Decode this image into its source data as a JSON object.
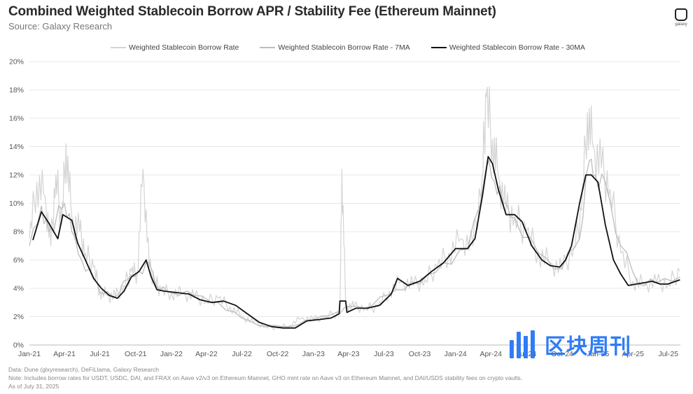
{
  "header": {
    "title": "Combined Weighted Stablecoin Borrow APR / Stability Fee (Ethereum Mainnet)",
    "subtitle": "Source: Galaxy Research",
    "logo_text": "galaxy"
  },
  "footer": {
    "line1": "Data: Dune (glxyresearch), DeFiLlama, Galaxy Research",
    "line2": "Note: Includes borrow rates for USDT, USDC, DAI, and FRAX on Aave v2/v3 on Ethereum Mainnet, GHO mint rate on Aave v3 on Ethereum Mainnet, and DAI/USDS stability fees on crypto vaults.",
    "line3": "As of July 31, 2025"
  },
  "watermark": {
    "text": "区块周刊"
  },
  "colors": {
    "daily": "#d4d4d4",
    "ma7": "#bdbdbd",
    "ma30": "#111111",
    "grid": "#e8e8e8",
    "watermark": "#2f7cf6"
  },
  "chart_data": {
    "type": "line",
    "x_ticks": [
      "Jan-21",
      "Apr-21",
      "Jul-21",
      "Oct-21",
      "Jan-22",
      "Apr-22",
      "Jul-22",
      "Oct-22",
      "Jan-23",
      "Apr-23",
      "Jul-23",
      "Oct-23",
      "Jan-24",
      "Apr-24",
      "Jul-24",
      "Oct-24",
      "Jan-25",
      "Apr-25",
      "Jul-25"
    ],
    "y_ticks": [
      "0%",
      "2%",
      "4%",
      "6%",
      "8%",
      "10%",
      "12%",
      "14%",
      "16%",
      "18%",
      "20%"
    ],
    "ylim": [
      0,
      20
    ],
    "xlabel": "",
    "ylabel": "",
    "grid": "horizontal",
    "legend_position": "top",
    "series": [
      {
        "name": "Weighted Stablecoin Borrow Rate",
        "x": [
          "2021-01-01",
          "2021-01-20",
          "2021-02-10",
          "2021-02-25",
          "2021-03-10",
          "2021-03-25",
          "2021-04-05",
          "2021-04-20",
          "2021-05-10",
          "2021-05-25",
          "2021-06-15",
          "2021-07-01",
          "2021-07-20",
          "2021-08-10",
          "2021-09-01",
          "2021-09-20",
          "2021-10-05",
          "2021-10-20",
          "2021-11-05",
          "2021-11-20",
          "2021-12-05",
          "2022-01-01",
          "2022-02-01",
          "2022-03-01",
          "2022-04-01",
          "2022-05-01",
          "2022-06-01",
          "2022-07-01",
          "2022-08-01",
          "2022-09-01",
          "2022-10-01",
          "2022-11-01",
          "2022-12-01",
          "2023-01-01",
          "2023-02-01",
          "2023-03-10",
          "2023-03-15",
          "2023-03-25",
          "2023-04-15",
          "2023-05-15",
          "2023-06-15",
          "2023-07-15",
          "2023-08-15",
          "2023-09-15",
          "2023-10-15",
          "2023-11-15",
          "2023-12-15",
          "2024-01-15",
          "2024-02-15",
          "2024-03-10",
          "2024-03-20",
          "2024-04-05",
          "2024-04-20",
          "2024-05-10",
          "2024-06-01",
          "2024-07-01",
          "2024-08-01",
          "2024-09-01",
          "2024-10-01",
          "2024-11-01",
          "2024-11-20",
          "2024-12-05",
          "2024-12-20",
          "2025-01-10",
          "2025-02-01",
          "2025-03-01",
          "2025-04-01",
          "2025-05-01",
          "2025-06-01",
          "2025-07-01",
          "2025-07-31"
        ],
        "values": [
          7.5,
          11.5,
          10.5,
          7.0,
          12.0,
          8.5,
          14.2,
          9.0,
          8.0,
          6.5,
          5.5,
          3.8,
          3.5,
          3.4,
          4.2,
          5.2,
          5.0,
          12.4,
          5.5,
          4.5,
          3.8,
          3.7,
          3.6,
          3.4,
          3.1,
          3.3,
          2.7,
          2.0,
          1.6,
          1.3,
          1.2,
          1.4,
          1.9,
          1.8,
          2.0,
          2.3,
          12.4,
          2.8,
          2.7,
          2.6,
          2.7,
          3.8,
          4.5,
          4.2,
          4.6,
          5.5,
          6.5,
          7.5,
          7.0,
          12.0,
          17.5,
          14.5,
          12.0,
          9.5,
          9.0,
          8.0,
          6.5,
          5.8,
          5.3,
          7.0,
          9.5,
          16.4,
          14.0,
          12.5,
          11.0,
          6.5,
          4.5,
          4.3,
          4.4,
          4.3,
          5.2
        ]
      },
      {
        "name": "Weighted Stablecoin Borrow Rate - 7MA",
        "x": [
          "2021-01-01",
          "2021-02-01",
          "2021-02-20",
          "2021-03-10",
          "2021-04-01",
          "2021-04-20",
          "2021-05-15",
          "2021-06-15",
          "2021-07-10",
          "2021-08-10",
          "2021-09-10",
          "2021-10-10",
          "2021-11-05",
          "2021-12-01",
          "2022-01-01",
          "2022-03-01",
          "2022-05-01",
          "2022-07-01",
          "2022-09-01",
          "2022-11-01",
          "2023-01-01",
          "2023-03-01",
          "2023-04-01",
          "2023-06-01",
          "2023-08-01",
          "2023-10-01",
          "2023-12-01",
          "2024-02-01",
          "2024-03-20",
          "2024-04-10",
          "2024-05-01",
          "2024-06-01",
          "2024-08-01",
          "2024-10-01",
          "2024-11-15",
          "2024-12-10",
          "2024-12-25",
          "2025-01-20",
          "2025-03-01",
          "2025-04-15",
          "2025-06-01",
          "2025-07-31"
        ],
        "values": [
          7.0,
          9.8,
          8.0,
          8.8,
          10.0,
          8.0,
          6.0,
          4.8,
          3.6,
          3.4,
          4.6,
          5.2,
          5.8,
          3.9,
          3.7,
          3.5,
          3.0,
          1.9,
          1.3,
          1.3,
          1.8,
          2.3,
          2.7,
          2.8,
          3.9,
          4.3,
          5.8,
          6.8,
          12.5,
          11.5,
          10.0,
          9.0,
          6.5,
          5.4,
          7.5,
          13.0,
          12.0,
          11.5,
          7.0,
          4.3,
          4.4,
          4.8
        ]
      },
      {
        "name": "Weighted Stablecoin Borrow Rate - 30MA",
        "x": [
          "2021-01-10",
          "2021-02-01",
          "2021-02-20",
          "2021-03-15",
          "2021-03-28",
          "2021-04-20",
          "2021-05-05",
          "2021-05-25",
          "2021-06-15",
          "2021-07-05",
          "2021-07-25",
          "2021-08-15",
          "2021-09-01",
          "2021-09-20",
          "2021-10-10",
          "2021-10-28",
          "2021-11-10",
          "2021-11-25",
          "2021-12-15",
          "2022-01-15",
          "2022-02-15",
          "2022-03-15",
          "2022-04-15",
          "2022-05-15",
          "2022-06-15",
          "2022-07-15",
          "2022-08-15",
          "2022-09-15",
          "2022-10-15",
          "2022-11-15",
          "2022-12-15",
          "2023-01-15",
          "2023-02-15",
          "2023-03-08",
          "2023-03-10",
          "2023-03-25",
          "2023-03-28",
          "2023-04-20",
          "2023-05-20",
          "2023-06-20",
          "2023-07-20",
          "2023-08-05",
          "2023-09-01",
          "2023-10-01",
          "2023-11-01",
          "2023-12-01",
          "2024-01-01",
          "2024-02-01",
          "2024-02-20",
          "2024-03-10",
          "2024-03-25",
          "2024-04-05",
          "2024-04-20",
          "2024-05-10",
          "2024-06-01",
          "2024-06-20",
          "2024-07-15",
          "2024-08-10",
          "2024-09-01",
          "2024-09-25",
          "2024-10-10",
          "2024-10-25",
          "2024-11-15",
          "2024-12-01",
          "2024-12-15",
          "2025-01-01",
          "2025-01-20",
          "2025-02-10",
          "2025-03-01",
          "2025-03-20",
          "2025-04-10",
          "2025-05-01",
          "2025-05-20",
          "2025-06-10",
          "2025-06-30",
          "2025-07-20",
          "2025-07-31"
        ],
        "values": [
          7.4,
          9.4,
          8.6,
          7.5,
          9.2,
          8.8,
          7.2,
          6.0,
          4.7,
          4.0,
          3.5,
          3.3,
          3.8,
          4.8,
          5.2,
          6.0,
          4.8,
          3.9,
          3.8,
          3.7,
          3.6,
          3.2,
          3.0,
          3.1,
          2.8,
          2.2,
          1.6,
          1.3,
          1.2,
          1.2,
          1.7,
          1.8,
          1.9,
          2.2,
          3.1,
          3.1,
          2.3,
          2.6,
          2.6,
          2.8,
          3.6,
          4.7,
          4.2,
          4.5,
          5.2,
          5.8,
          6.8,
          6.8,
          7.5,
          10.5,
          13.3,
          12.8,
          11.0,
          9.2,
          9.2,
          8.7,
          7.0,
          6.0,
          5.6,
          5.5,
          6.0,
          7.0,
          10.0,
          12.0,
          12.0,
          11.5,
          8.5,
          6.0,
          5.0,
          4.2,
          4.3,
          4.4,
          4.5,
          4.3,
          4.3,
          4.5,
          4.6
        ]
      }
    ]
  }
}
